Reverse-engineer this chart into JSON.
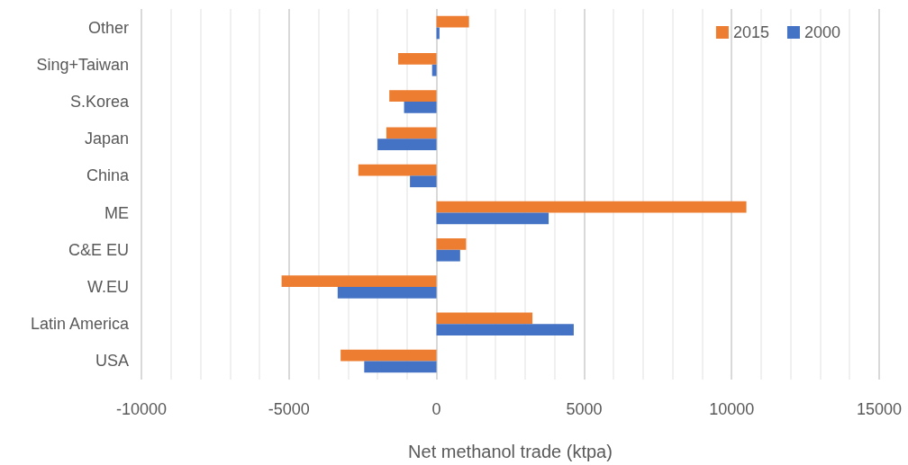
{
  "chart_data": {
    "type": "bar",
    "orientation": "horizontal",
    "xlabel": "Net methanol trade (ktpa)",
    "categories": [
      "Other",
      "Sing+Taiwan",
      "S.Korea",
      "Japan",
      "China",
      "ME",
      "C&E EU",
      "W.EU",
      "Latin America",
      "USA"
    ],
    "series": [
      {
        "name": "2015",
        "color": "#ed7d31",
        "values": [
          1100,
          -1300,
          -1600,
          -1700,
          -2650,
          10500,
          1000,
          -5250,
          3250,
          -3250
        ]
      },
      {
        "name": "2000",
        "color": "#4472c4",
        "values": [
          100,
          -150,
          -1100,
          -2000,
          -900,
          3800,
          800,
          -3350,
          4650,
          -2450
        ]
      }
    ],
    "xlim": [
      -10000,
      15000
    ],
    "xticks": [
      -10000,
      -5000,
      0,
      5000,
      10000,
      15000
    ],
    "grid": "x",
    "legend": "top right"
  }
}
